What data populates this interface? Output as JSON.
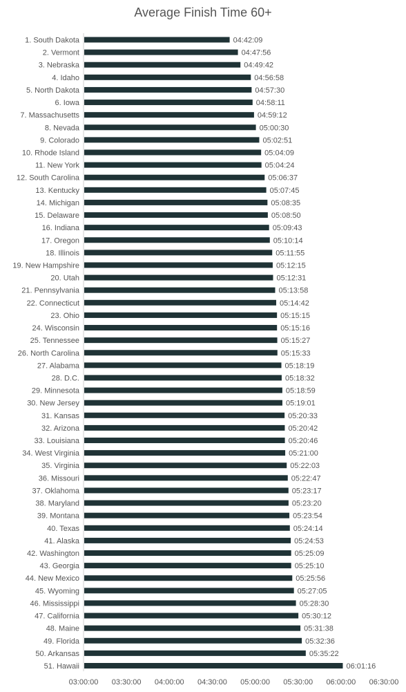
{
  "chart_data": {
    "type": "bar",
    "orientation": "horizontal",
    "title": "Average Finish Time 60+",
    "bar_color": "#1f3336",
    "axis_color": "#cfcfcf",
    "xlim": [
      "03:00:00",
      "06:30:00"
    ],
    "x_ticks": [
      "03:00:00",
      "03:30:00",
      "04:00:00",
      "04:30:00",
      "05:00:00",
      "05:30:00",
      "06:00:00",
      "06:30:00"
    ],
    "categories": [
      "1. South Dakota",
      "2. Vermont",
      "3. Nebraska",
      "4. Idaho",
      "5. North Dakota",
      "6. Iowa",
      "7. Massachusetts",
      "8. Nevada",
      "9. Colorado",
      "10. Rhode Island",
      "11. New York",
      "12. South Carolina",
      "13. Kentucky",
      "14. Michigan",
      "15. Delaware",
      "16. Indiana",
      "17. Oregon",
      "18. Illinois",
      "19. New Hampshire",
      "20. Utah",
      "21. Pennsylvania",
      "22. Connecticut",
      "23. Ohio",
      "24. Wisconsin",
      "25. Tennessee",
      "26. North Carolina",
      "27. Alabama",
      "28. D.C.",
      "29. Minnesota",
      "30. New Jersey",
      "31. Kansas",
      "32. Arizona",
      "33. Louisiana",
      "34. West Virginia",
      "35. Virginia",
      "36. Missouri",
      "37. Oklahoma",
      "38. Maryland",
      "39. Montana",
      "40. Texas",
      "41. Alaska",
      "42. Washington",
      "43. Georgia",
      "44. New Mexico",
      "45. Wyoming",
      "46. Mississippi",
      "47. California",
      "48. Maine",
      "49. Florida",
      "50. Arkansas",
      "51. Hawaii"
    ],
    "values": [
      "04:42:09",
      "04:47:56",
      "04:49:42",
      "04:56:58",
      "04:57:30",
      "04:58:11",
      "04:59:12",
      "05:00:30",
      "05:02:51",
      "05:04:09",
      "05:04:24",
      "05:06:37",
      "05:07:45",
      "05:08:35",
      "05:08:50",
      "05:09:43",
      "05:10:14",
      "05:11:55",
      "05:12:15",
      "05:12:31",
      "05:13:58",
      "05:14:42",
      "05:15:15",
      "05:15:16",
      "05:15:27",
      "05:15:33",
      "05:18:19",
      "05:18:32",
      "05:18:59",
      "05:19:01",
      "05:20:33",
      "05:20:42",
      "05:20:46",
      "05:21:00",
      "05:22:03",
      "05:22:47",
      "05:23:17",
      "05:23:20",
      "05:23:54",
      "05:24:14",
      "05:24:53",
      "05:25:09",
      "05:25:10",
      "05:25:56",
      "05:27:05",
      "05:28:30",
      "05:30:12",
      "05:31:38",
      "05:32:36",
      "05:35:22",
      "06:01:16"
    ],
    "grid": false,
    "legend": "none"
  }
}
